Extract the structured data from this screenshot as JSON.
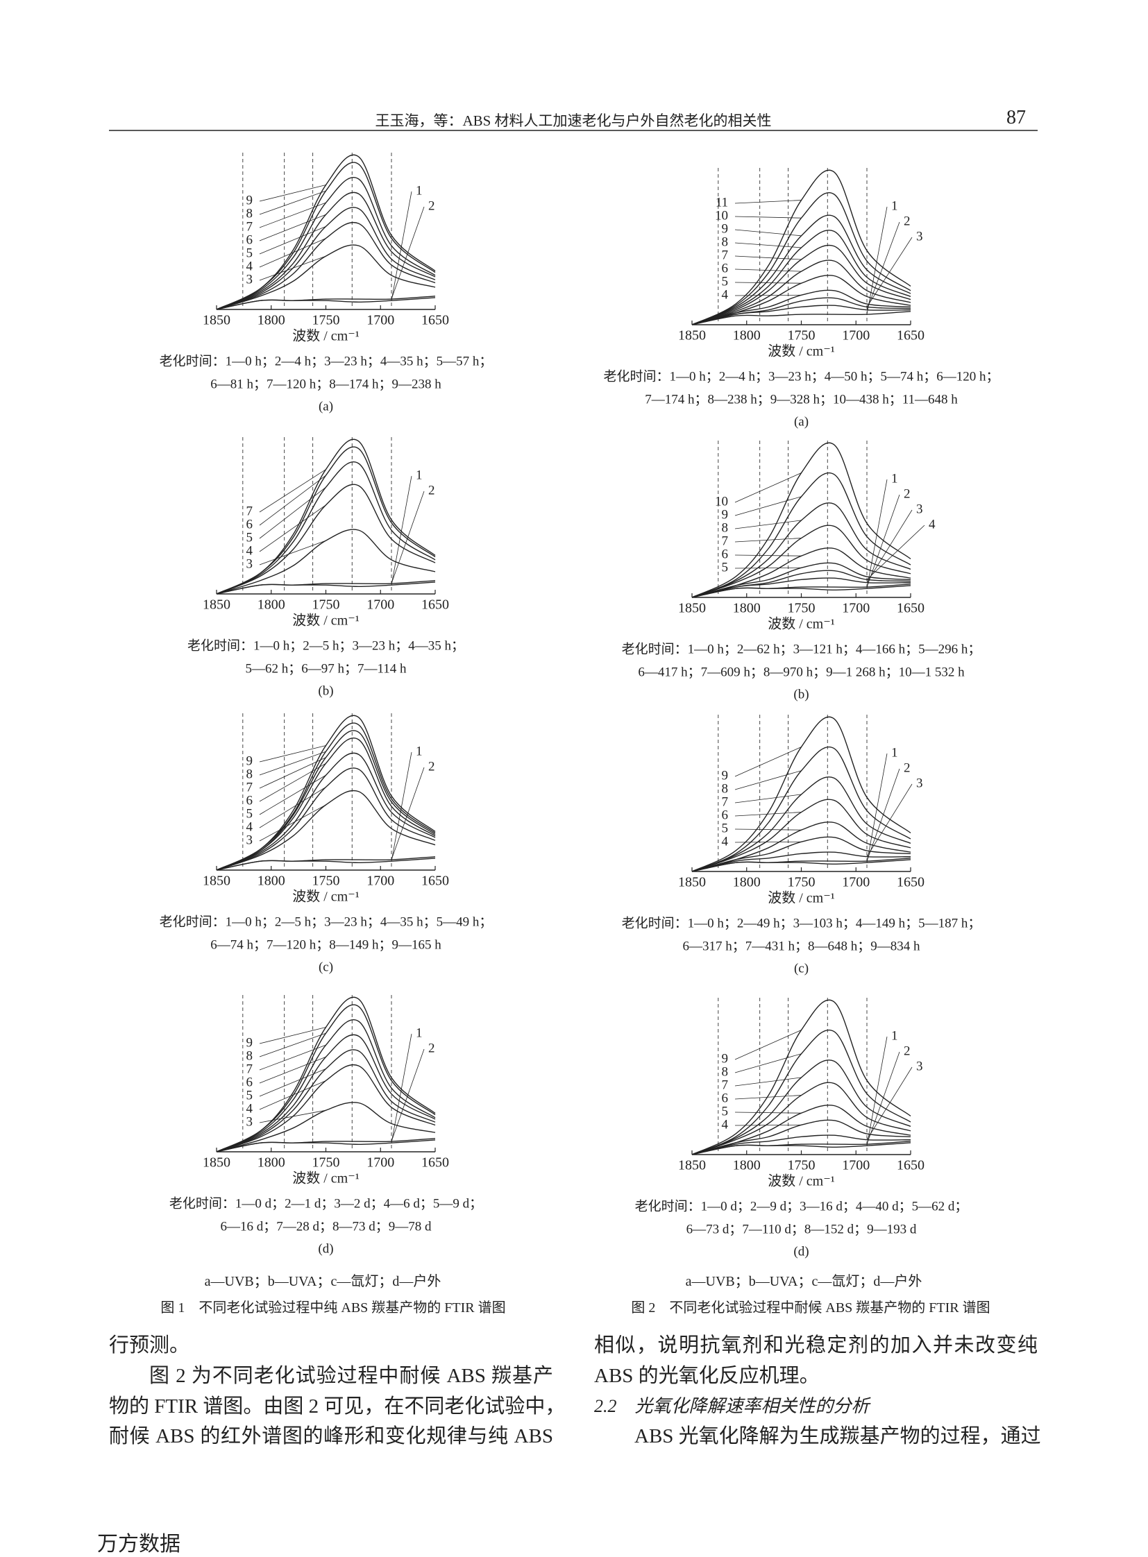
{
  "header": {
    "title": "王玉海，等：ABS 材料人工加速老化与户外自然老化的相关性",
    "page": "87"
  },
  "chart_data": [
    {
      "type": "line",
      "color": "#222222",
      "x_label": "波数 / cm⁻¹",
      "panel": "(a)",
      "caption": [
        "老化时间：1—0 h；2—4 h；3—23 h；4—35 h；5—57 h；",
        "6—81 h；7—120 h；8—174 h；9—238 h"
      ],
      "x": [
        1850,
        1810,
        1780,
        1750,
        1720,
        1690,
        1650
      ],
      "xlim": [
        1850,
        1650
      ],
      "xticks": [
        1850,
        1800,
        1750,
        1700,
        1650
      ],
      "ylim": [
        0,
        110
      ],
      "series": [
        {
          "name": "1",
          "values": [
            0,
            6,
            6,
            6,
            5,
            6,
            8
          ]
        },
        {
          "name": "2",
          "values": [
            0,
            6,
            6,
            7,
            7,
            7,
            9
          ]
        },
        {
          "name": "3",
          "values": [
            0,
            9,
            19,
            36,
            43,
            23,
            15
          ]
        },
        {
          "name": "4",
          "values": [
            0,
            10,
            24,
            48,
            58,
            30,
            18
          ]
        },
        {
          "name": "5",
          "values": [
            0,
            11,
            28,
            56,
            68,
            34,
            20
          ]
        },
        {
          "name": "6",
          "values": [
            0,
            12,
            31,
            64,
            78,
            39,
            22
          ]
        },
        {
          "name": "7",
          "values": [
            0,
            13,
            35,
            72,
            88,
            43,
            23
          ]
        },
        {
          "name": "8",
          "values": [
            0,
            14,
            38,
            80,
            98,
            48,
            25
          ]
        },
        {
          "name": "9",
          "values": [
            0,
            14,
            40,
            84,
            103,
            50,
            26
          ]
        }
      ]
    },
    {
      "type": "line",
      "color": "#222222",
      "x_label": "波数 / cm⁻¹",
      "panel": "(b)",
      "caption": [
        "老化时间：1—0 h；2—5 h；3—23 h；4—35 h；",
        "5—62 h；6—97 h；7—114 h"
      ],
      "x": [
        1850,
        1810,
        1780,
        1750,
        1720,
        1690,
        1650
      ],
      "xlim": [
        1850,
        1650
      ],
      "xticks": [
        1850,
        1800,
        1750,
        1700,
        1650
      ],
      "ylim": [
        0,
        110
      ],
      "series": [
        {
          "name": "1",
          "values": [
            0,
            6,
            6,
            6,
            5,
            6,
            8
          ]
        },
        {
          "name": "2",
          "values": [
            0,
            6,
            6,
            7,
            7,
            7,
            9
          ]
        },
        {
          "name": "3",
          "values": [
            0,
            9,
            19,
            36,
            43,
            23,
            15
          ]
        },
        {
          "name": "4",
          "values": [
            0,
            12,
            30,
            60,
            73,
            37,
            21
          ]
        },
        {
          "name": "5",
          "values": [
            0,
            13,
            35,
            72,
            88,
            43,
            23
          ]
        },
        {
          "name": "6",
          "values": [
            0,
            14,
            38,
            80,
            98,
            48,
            25
          ]
        },
        {
          "name": "7",
          "values": [
            0,
            14,
            40,
            84,
            103,
            50,
            26
          ]
        }
      ]
    },
    {
      "type": "line",
      "color": "#222222",
      "x_label": "波数 / cm⁻¹",
      "panel": "(c)",
      "caption": [
        "老化时间：1—0 h；2—5 h；3—23 h；4—35 h；5—49 h；",
        "6—74 h；7—120 h；8—149 h；9—165 h"
      ],
      "x": [
        1850,
        1810,
        1780,
        1750,
        1720,
        1690,
        1650
      ],
      "xlim": [
        1850,
        1650
      ],
      "xticks": [
        1850,
        1800,
        1750,
        1700,
        1650
      ],
      "ylim": [
        0,
        110
      ],
      "series": [
        {
          "name": "1",
          "values": [
            0,
            6,
            6,
            6,
            5,
            6,
            8
          ]
        },
        {
          "name": "2",
          "values": [
            0,
            6,
            6,
            7,
            7,
            7,
            9
          ]
        },
        {
          "name": "3",
          "values": [
            0,
            10,
            23,
            44,
            53,
            28,
            17
          ]
        },
        {
          "name": "4",
          "values": [
            0,
            11,
            28,
            56,
            68,
            34,
            20
          ]
        },
        {
          "name": "5",
          "values": [
            0,
            12,
            31,
            64,
            78,
            39,
            22
          ]
        },
        {
          "name": "6",
          "values": [
            0,
            13,
            35,
            72,
            88,
            43,
            23
          ]
        },
        {
          "name": "7",
          "values": [
            0,
            13,
            37,
            76,
            93,
            46,
            24
          ]
        },
        {
          "name": "8",
          "values": [
            0,
            14,
            38,
            80,
            98,
            48,
            25
          ]
        },
        {
          "name": "9",
          "values": [
            0,
            14,
            40,
            84,
            103,
            50,
            26
          ]
        }
      ]
    },
    {
      "type": "line",
      "color": "#222222",
      "x_label": "波数 / cm⁻¹",
      "panel": "(d)",
      "caption": [
        "老化时间：1—0 d；2—1 d；3—2 d；4—6 d；5—9 d；",
        "6—16 d；7—28 d；8—73 d；9—78 d"
      ],
      "x": [
        1850,
        1810,
        1780,
        1750,
        1720,
        1690,
        1650
      ],
      "xlim": [
        1850,
        1650
      ],
      "xticks": [
        1850,
        1800,
        1750,
        1700,
        1650
      ],
      "ylim": [
        0,
        110
      ],
      "series": [
        {
          "name": "1",
          "values": [
            0,
            6,
            6,
            6,
            5,
            6,
            8
          ]
        },
        {
          "name": "2",
          "values": [
            0,
            6,
            6,
            7,
            7,
            7,
            9
          ]
        },
        {
          "name": "3",
          "values": [
            0,
            8,
            16,
            28,
            33,
            19,
            13
          ]
        },
        {
          "name": "4",
          "values": [
            0,
            10,
            24,
            48,
            58,
            30,
            18
          ]
        },
        {
          "name": "5",
          "values": [
            0,
            11,
            28,
            56,
            68,
            34,
            20
          ]
        },
        {
          "name": "6",
          "values": [
            0,
            12,
            31,
            64,
            78,
            39,
            22
          ]
        },
        {
          "name": "7",
          "values": [
            0,
            13,
            35,
            72,
            88,
            43,
            23
          ]
        },
        {
          "name": "8",
          "values": [
            0,
            14,
            38,
            80,
            98,
            48,
            25
          ]
        },
        {
          "name": "9",
          "values": [
            0,
            14,
            40,
            84,
            103,
            50,
            26
          ]
        }
      ]
    },
    {
      "type": "line",
      "color": "#222222",
      "x_label": "波数 / cm⁻¹",
      "panel": "(a)",
      "caption": [
        "老化时间：1—0 h；2—4 h；3—23 h；4—50 h；5—74 h；6—120 h；",
        "7—174 h；8—238 h；9—328 h；10—438 h；11—648 h"
      ],
      "x": [
        1850,
        1810,
        1780,
        1750,
        1720,
        1690,
        1650
      ],
      "xlim": [
        1850,
        1650
      ],
      "xticks": [
        1850,
        1800,
        1750,
        1700,
        1650
      ],
      "ylim": [
        0,
        110
      ],
      "series": [
        {
          "name": "1",
          "values": [
            0,
            6,
            6,
            7,
            7,
            7,
            9
          ]
        },
        {
          "name": "2",
          "values": [
            0,
            7,
            9,
            12,
            13,
            10,
            10
          ]
        },
        {
          "name": "3",
          "values": [
            0,
            7,
            10,
            16,
            18,
            12,
            11
          ]
        },
        {
          "name": "4",
          "values": [
            0,
            8,
            12,
            20,
            23,
            14,
            12
          ]
        },
        {
          "name": "5",
          "values": [
            0,
            8,
            16,
            28,
            33,
            19,
            13
          ]
        },
        {
          "name": "6",
          "values": [
            0,
            9,
            19,
            36,
            43,
            23,
            15
          ]
        },
        {
          "name": "7",
          "values": [
            0,
            10,
            23,
            44,
            53,
            28,
            17
          ]
        },
        {
          "name": "8",
          "values": [
            0,
            11,
            26,
            52,
            63,
            32,
            19
          ]
        },
        {
          "name": "9",
          "values": [
            0,
            12,
            30,
            60,
            73,
            37,
            21
          ]
        },
        {
          "name": "10",
          "values": [
            0,
            13,
            35,
            72,
            88,
            43,
            23
          ]
        },
        {
          "name": "11",
          "values": [
            0,
            14,
            40,
            84,
            103,
            50,
            26
          ]
        }
      ]
    },
    {
      "type": "line",
      "color": "#222222",
      "x_label": "波数 / cm⁻¹",
      "panel": "(b)",
      "caption": [
        "老化时间：1—0 h；2—62 h；3—121 h；4—166 h；5—296 h；",
        "6—417 h；7—609 h；8—970 h；9—1 268 h；10—1 532 h"
      ],
      "x": [
        1850,
        1810,
        1780,
        1750,
        1720,
        1690,
        1650
      ],
      "xlim": [
        1850,
        1650
      ],
      "xticks": [
        1850,
        1800,
        1750,
        1700,
        1650
      ],
      "ylim": [
        0,
        110
      ],
      "series": [
        {
          "name": "1",
          "values": [
            0,
            6,
            6,
            6,
            5,
            6,
            8
          ]
        },
        {
          "name": "2",
          "values": [
            0,
            6,
            6,
            7,
            7,
            7,
            9
          ]
        },
        {
          "name": "3",
          "values": [
            0,
            7,
            9,
            12,
            13,
            10,
            10
          ]
        },
        {
          "name": "4",
          "values": [
            0,
            7,
            10,
            16,
            18,
            12,
            11
          ]
        },
        {
          "name": "5",
          "values": [
            0,
            8,
            12,
            20,
            23,
            14,
            12
          ]
        },
        {
          "name": "6",
          "values": [
            0,
            8,
            16,
            28,
            33,
            19,
            13
          ]
        },
        {
          "name": "7",
          "values": [
            0,
            10,
            21,
            40,
            48,
            25,
            16
          ]
        },
        {
          "name": "8",
          "values": [
            0,
            11,
            26,
            52,
            63,
            32,
            19
          ]
        },
        {
          "name": "9",
          "values": [
            0,
            12,
            33,
            68,
            83,
            41,
            22
          ]
        },
        {
          "name": "10",
          "values": [
            0,
            14,
            40,
            84,
            103,
            50,
            26
          ]
        }
      ]
    },
    {
      "type": "line",
      "color": "#222222",
      "x_label": "波数 / cm⁻¹",
      "panel": "(c)",
      "caption": [
        "老化时间：1—0 h；2—49 h；3—103 h；4—149 h；5—187 h；",
        "6—317 h；7—431 h；8—648 h；9—834 h"
      ],
      "x": [
        1850,
        1810,
        1780,
        1750,
        1720,
        1690,
        1650
      ],
      "xlim": [
        1850,
        1650
      ],
      "xticks": [
        1850,
        1800,
        1750,
        1700,
        1650
      ],
      "ylim": [
        0,
        110
      ],
      "series": [
        {
          "name": "1",
          "values": [
            0,
            6,
            6,
            6,
            5,
            6,
            8
          ]
        },
        {
          "name": "2",
          "values": [
            0,
            6,
            6,
            7,
            7,
            7,
            9
          ]
        },
        {
          "name": "3",
          "values": [
            0,
            7,
            9,
            12,
            13,
            10,
            10
          ]
        },
        {
          "name": "4",
          "values": [
            0,
            8,
            12,
            20,
            23,
            14,
            12
          ]
        },
        {
          "name": "5",
          "values": [
            0,
            8,
            16,
            28,
            33,
            19,
            13
          ]
        },
        {
          "name": "6",
          "values": [
            0,
            10,
            21,
            40,
            48,
            25,
            16
          ]
        },
        {
          "name": "7",
          "values": [
            0,
            11,
            26,
            52,
            63,
            32,
            19
          ]
        },
        {
          "name": "8",
          "values": [
            0,
            12,
            33,
            68,
            83,
            41,
            22
          ]
        },
        {
          "name": "9",
          "values": [
            0,
            14,
            40,
            84,
            103,
            50,
            26
          ]
        }
      ]
    },
    {
      "type": "line",
      "color": "#222222",
      "x_label": "波数 / cm⁻¹",
      "panel": "(d)",
      "caption": [
        "老化时间：1—0 d；2—9 d；3—16 d；4—40 d；5—62 d；",
        "6—73 d；7—110 d；8—152 d；9—193 d"
      ],
      "x": [
        1850,
        1810,
        1780,
        1750,
        1720,
        1690,
        1650
      ],
      "xlim": [
        1850,
        1650
      ],
      "xticks": [
        1850,
        1800,
        1750,
        1700,
        1650
      ],
      "ylim": [
        0,
        110
      ],
      "series": [
        {
          "name": "1",
          "values": [
            0,
            6,
            6,
            6,
            5,
            6,
            8
          ]
        },
        {
          "name": "2",
          "values": [
            0,
            6,
            6,
            7,
            7,
            7,
            9
          ]
        },
        {
          "name": "3",
          "values": [
            0,
            7,
            9,
            12,
            13,
            10,
            10
          ]
        },
        {
          "name": "4",
          "values": [
            0,
            8,
            12,
            20,
            23,
            14,
            12
          ]
        },
        {
          "name": "5",
          "values": [
            0,
            8,
            16,
            28,
            33,
            19,
            13
          ]
        },
        {
          "name": "6",
          "values": [
            0,
            10,
            21,
            40,
            48,
            25,
            16
          ]
        },
        {
          "name": "7",
          "values": [
            0,
            11,
            26,
            52,
            63,
            32,
            19
          ]
        },
        {
          "name": "8",
          "values": [
            0,
            12,
            33,
            68,
            83,
            41,
            22
          ]
        },
        {
          "name": "9",
          "values": [
            0,
            14,
            40,
            84,
            103,
            50,
            26
          ]
        }
      ]
    }
  ],
  "figures": [
    {
      "legend": "a—UVB；b—UVA；c—氙灯；d—户外",
      "caption": "图 1　不同老化试验过程中纯 ABS 羰基产物的 FTIR 谱图"
    },
    {
      "legend": "a—UVB；b—UVA；c—氙灯；d—户外",
      "caption": "图 2　不同老化试验过程中耐候 ABS 羰基产物的 FTIR 谱图"
    }
  ],
  "body": {
    "left": [
      "行预测。",
      "图 2 为不同老化试验过程中耐候 ABS 羰基产",
      "物的 FTIR 谱图。由图 2 可见，在不同老化试验中，",
      "耐候 ABS 的红外谱图的峰形和变化规律与纯 ABS"
    ],
    "right": [
      "相似，说明抗氧剂和光稳定剂的加入并未改变纯",
      "ABS 的光氧化反应机理。",
      "2.2　光氧化降解速率相关性的分析",
      "ABS 光氧化降解为生成羰基产物的过程，通过"
    ]
  },
  "footer": "万方数据"
}
